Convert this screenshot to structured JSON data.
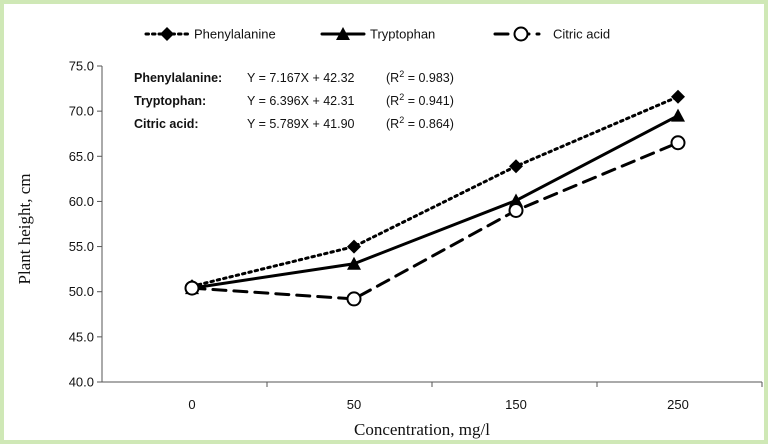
{
  "chart_data": {
    "type": "line",
    "categories": [
      "0",
      "50",
      "150",
      "250"
    ],
    "xlabel": "Concentration, mg/l",
    "ylabel": "Plant height, cm",
    "ylim": [
      40,
      75
    ],
    "yticks": [
      "40.0",
      "45.0",
      "50.0",
      "55.0",
      "60.0",
      "65.0",
      "70.0",
      "75.0"
    ],
    "grid": false,
    "legend_position": "top",
    "series": [
      {
        "name": "Phenylalanine",
        "values": [
          50.6,
          55.0,
          63.9,
          71.6
        ],
        "line_style": "dotted",
        "marker": "diamond",
        "color": "#000000",
        "equation": "Y = 7.167X + 42.32",
        "r2": "0.983"
      },
      {
        "name": "Tryptophan",
        "values": [
          50.4,
          53.1,
          60.1,
          69.5
        ],
        "line_style": "solid",
        "marker": "triangle",
        "color": "#000000",
        "equation": "Y = 6.396X + 42.31",
        "r2": "0.941"
      },
      {
        "name": "Citric acid",
        "values": [
          50.4,
          49.2,
          59.0,
          66.5
        ],
        "line_style": "dashed",
        "marker": "open-circle",
        "color": "#000000",
        "equation": "Y = 5.789X + 41.90",
        "r2": "0.864"
      }
    ],
    "annotations": [
      {
        "label": "Phenylalanine:",
        "equation": "Y = 7.167X + 42.32",
        "r2_prefix": "(R",
        "r2_sup": "2",
        "r2_value": " = 0.983)"
      },
      {
        "label": "Tryptophan:",
        "equation": "Y = 6.396X + 42.31",
        "r2_prefix": "(R",
        "r2_sup": "2",
        "r2_value": " = 0.941)"
      },
      {
        "label": "Citric acid:",
        "equation": "Y = 5.789X + 41.90",
        "r2_prefix": "(R",
        "r2_sup": "2",
        "r2_value": " = 0.864)"
      }
    ]
  }
}
